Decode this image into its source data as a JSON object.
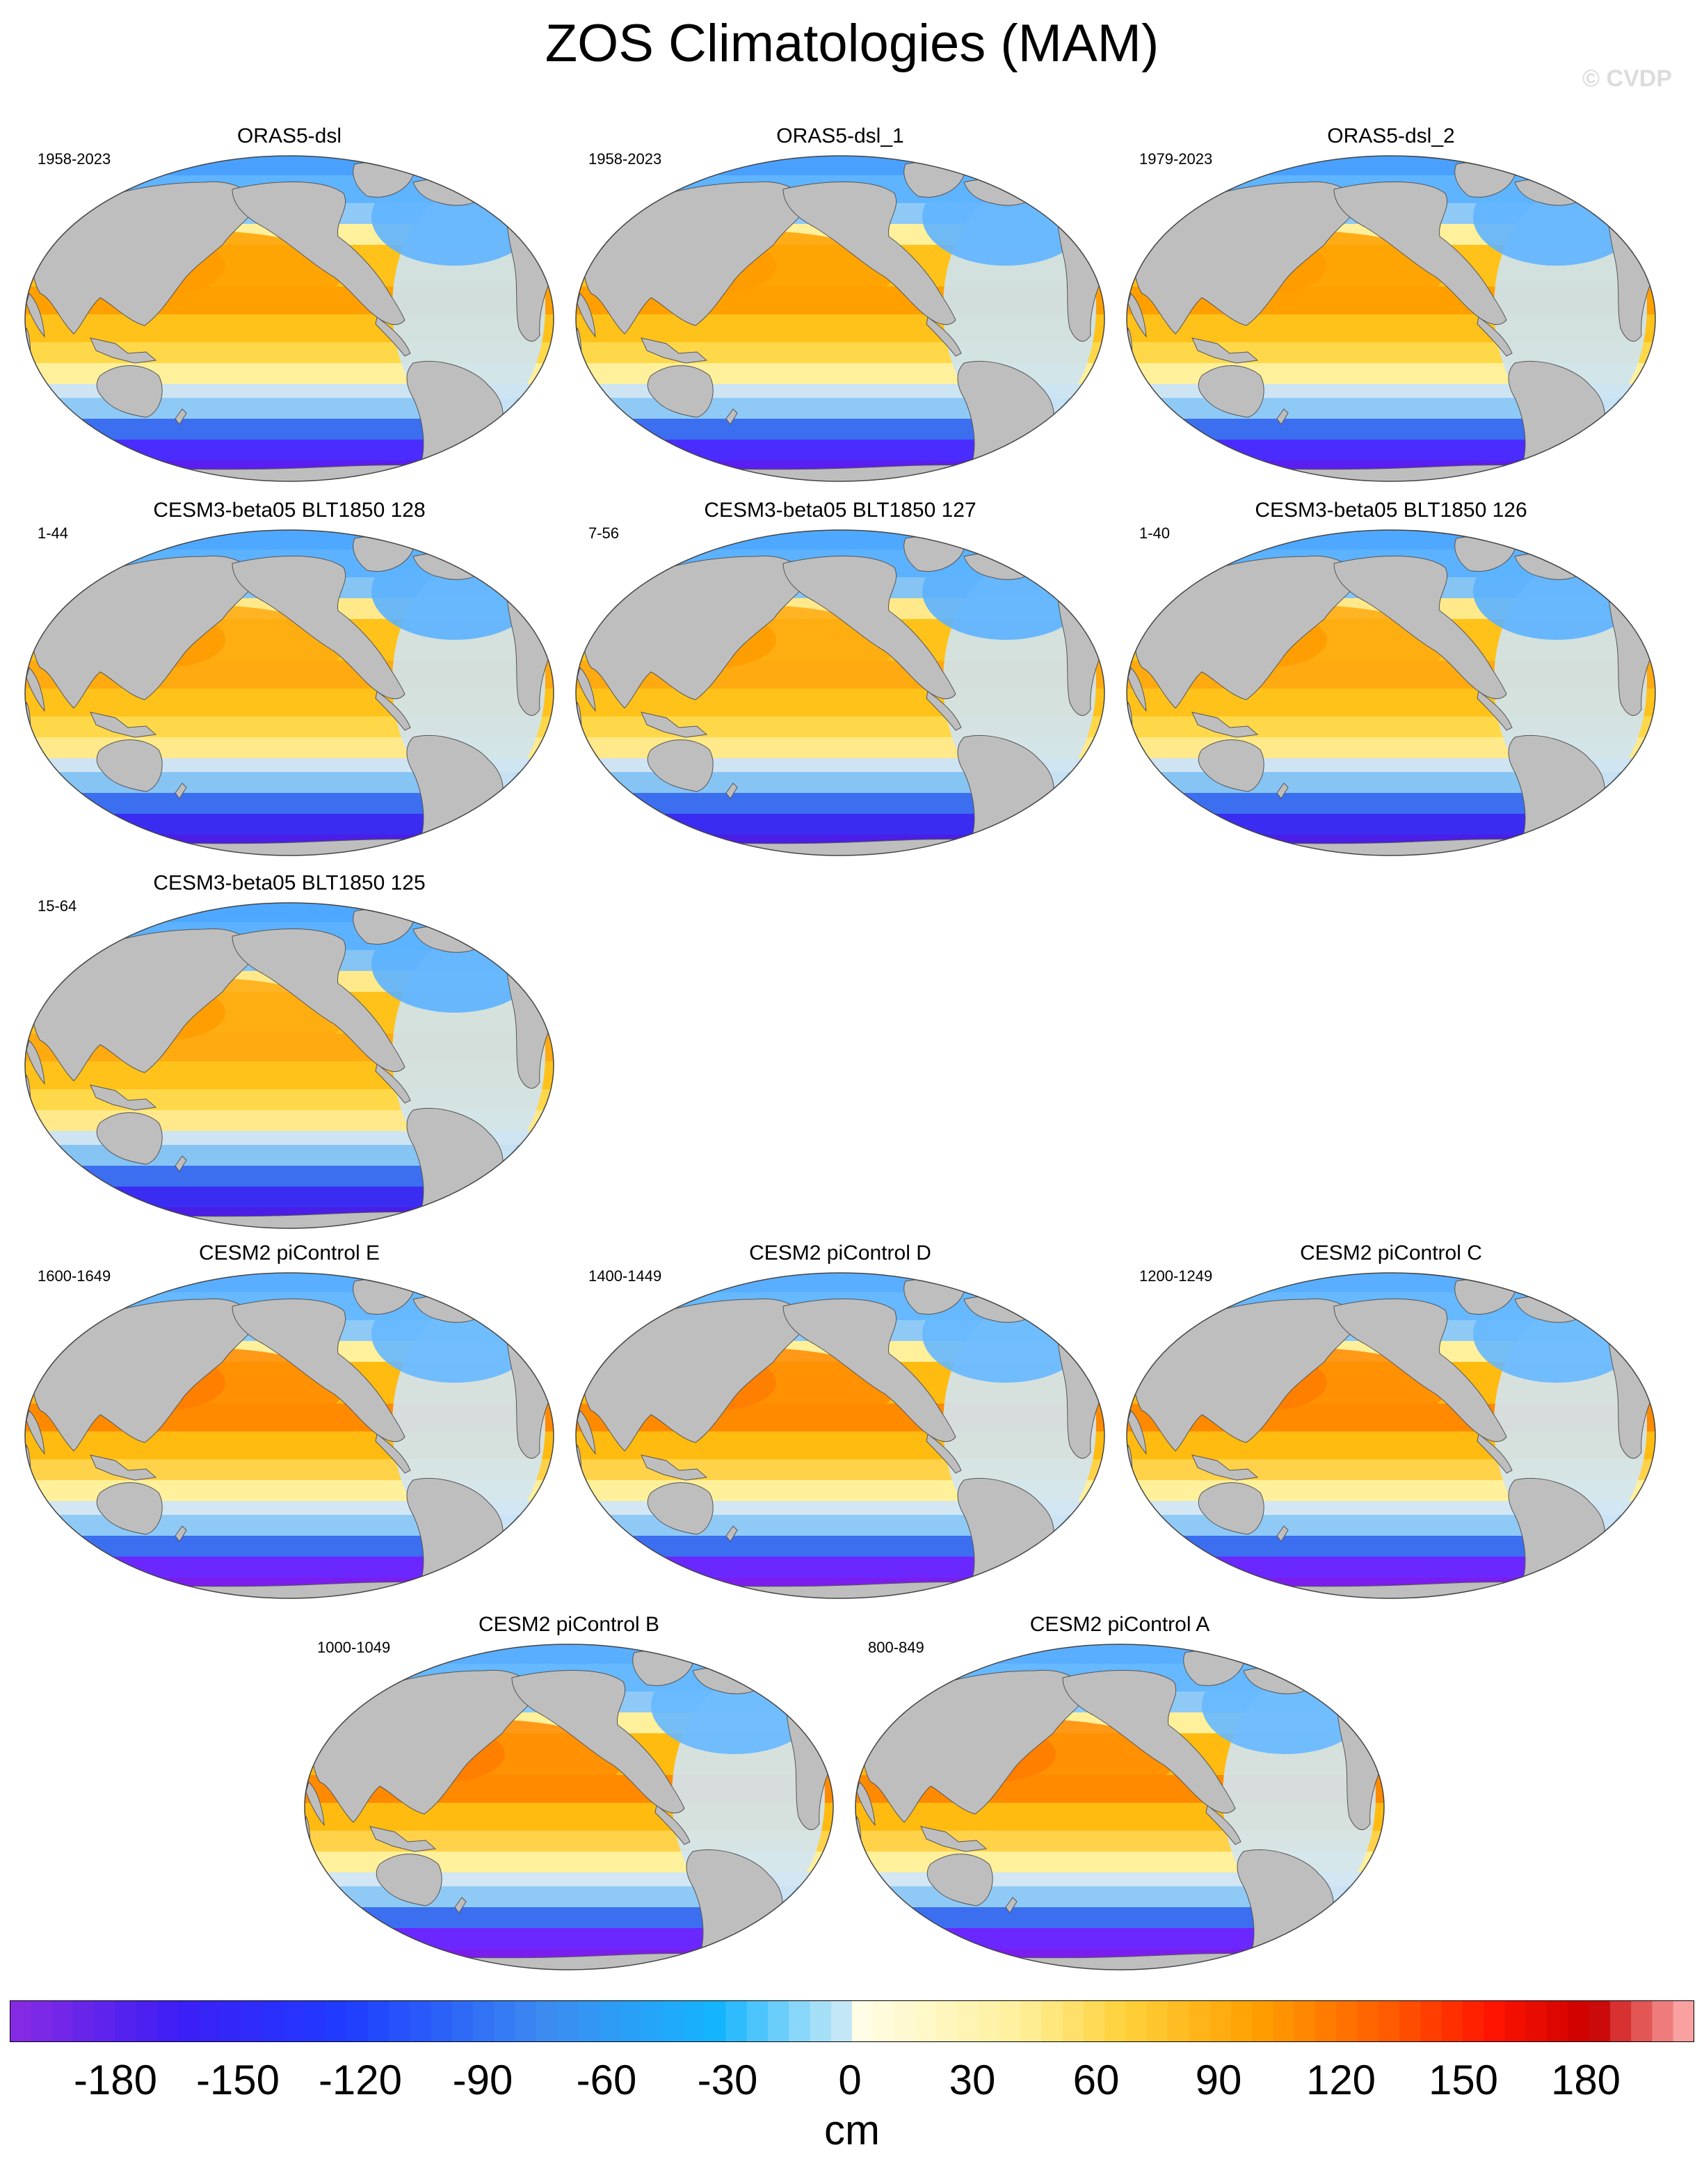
{
  "title": "ZOS Climatologies (MAM)",
  "copyright": "© CVDP",
  "panels": [
    {
      "name": "ORAS5-dsl",
      "years": "1958-2023"
    },
    {
      "name": "ORAS5-dsl_1",
      "years": "1958-2023"
    },
    {
      "name": "ORAS5-dsl_2",
      "years": "1979-2023"
    },
    {
      "name": "CESM3-beta05 BLT1850 128",
      "years": "1-44"
    },
    {
      "name": "CESM3-beta05 BLT1850 127",
      "years": "7-56"
    },
    {
      "name": "CESM3-beta05 BLT1850 126",
      "years": "1-40"
    },
    {
      "name": "CESM3-beta05 BLT1850 125",
      "years": "15-64"
    },
    {
      "name": "CESM2 piControl E",
      "years": "1600-1649"
    },
    {
      "name": "CESM2 piControl D",
      "years": "1400-1449"
    },
    {
      "name": "CESM2 piControl C",
      "years": "1200-1249"
    },
    {
      "name": "CESM2 piControl B",
      "years": "1000-1049"
    },
    {
      "name": "CESM2 piControl A",
      "years": "800-849"
    }
  ],
  "colorbar": {
    "unit": "cm",
    "ticks": [
      "-180",
      "-150",
      "-120",
      "-90",
      "-60",
      "-30",
      "0",
      "30",
      "60",
      "90",
      "120",
      "150",
      "180"
    ],
    "min": -200,
    "max": 200,
    "step": 5
  },
  "colors": {
    "land": "#bebebe",
    "outline": "#555555"
  }
}
